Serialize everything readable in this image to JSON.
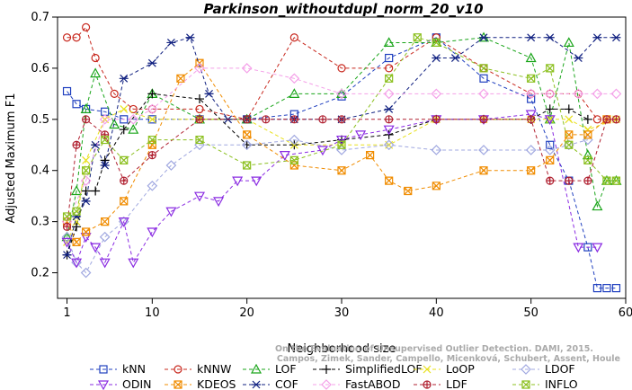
{
  "chart_data": {
    "type": "line",
    "title": "Parkinson_withoutdupl_norm_20_v10",
    "xlabel": "Neighborhood size",
    "ylabel": "Adjusted Maximum F1",
    "xlim": [
      0,
      60
    ],
    "ylim": [
      0.15,
      0.7
    ],
    "xticks": [
      1,
      10,
      20,
      30,
      40,
      50,
      60
    ],
    "yticks": [
      0.2,
      0.3,
      0.4,
      0.5,
      0.6,
      0.7
    ],
    "grid": false,
    "legend_position": "bottom",
    "credit": [
      "Campos, Zimek, Sander, Campello, Micenková, Schubert, Assent, Houle",
      "On the Evaluation of Unsupervised Outlier Detection. DAMI, 2015."
    ],
    "series": [
      {
        "name": "kNN",
        "color": "#1f3fbf",
        "marker": "square",
        "x": [
          1,
          2,
          3,
          5,
          7,
          10,
          15,
          20,
          25,
          30,
          35,
          40,
          45,
          50,
          52,
          54,
          56,
          57,
          58,
          59
        ],
        "y": [
          0.555,
          0.53,
          0.52,
          0.515,
          0.5,
          0.5,
          0.5,
          0.5,
          0.51,
          0.545,
          0.62,
          0.66,
          0.58,
          0.54,
          0.45,
          0.38,
          0.25,
          0.17,
          0.17,
          0.17
        ]
      },
      {
        "name": "kNNW",
        "color": "#c8281e",
        "marker": "circle",
        "x": [
          1,
          2,
          3,
          4,
          6,
          8,
          10,
          15,
          20,
          25,
          30,
          35,
          40,
          45,
          50,
          52,
          55,
          57,
          58,
          59
        ],
        "y": [
          0.66,
          0.66,
          0.68,
          0.62,
          0.55,
          0.52,
          0.52,
          0.52,
          0.5,
          0.66,
          0.6,
          0.6,
          0.66,
          0.6,
          0.55,
          0.55,
          0.55,
          0.5,
          0.5,
          0.5
        ]
      },
      {
        "name": "LOF",
        "color": "#1aa51a",
        "marker": "triangle-up",
        "x": [
          1,
          2,
          3,
          4,
          6,
          8,
          10,
          15,
          20,
          25,
          30,
          35,
          40,
          45,
          50,
          52,
          54,
          56,
          57,
          58,
          59
        ],
        "y": [
          0.27,
          0.36,
          0.52,
          0.59,
          0.49,
          0.48,
          0.55,
          0.5,
          0.5,
          0.55,
          0.55,
          0.65,
          0.65,
          0.66,
          0.62,
          0.5,
          0.65,
          0.43,
          0.33,
          0.38,
          0.38
        ]
      },
      {
        "name": "SimplifiedLOF",
        "color": "#000000",
        "marker": "plus",
        "x": [
          1,
          2,
          3,
          4,
          5,
          7,
          10,
          15,
          20,
          25,
          30,
          35,
          40,
          45,
          50,
          52,
          54,
          56
        ],
        "y": [
          0.235,
          0.29,
          0.36,
          0.36,
          0.42,
          0.48,
          0.55,
          0.54,
          0.45,
          0.45,
          0.46,
          0.47,
          0.5,
          0.5,
          0.5,
          0.52,
          0.52,
          0.5
        ]
      },
      {
        "name": "LoOP",
        "color": "#e8e01a",
        "marker": "x",
        "x": [
          1,
          2,
          3,
          5,
          7,
          10,
          15,
          20,
          25,
          30,
          35,
          40,
          45,
          50,
          52,
          54,
          56,
          59
        ],
        "y": [
          0.26,
          0.3,
          0.42,
          0.5,
          0.52,
          0.5,
          0.5,
          0.5,
          0.45,
          0.45,
          0.45,
          0.5,
          0.5,
          0.5,
          0.5,
          0.5,
          0.48,
          0.5
        ]
      },
      {
        "name": "LDOF",
        "color": "#a0a8e0",
        "marker": "diamond",
        "x": [
          1,
          2,
          3,
          5,
          7,
          10,
          12,
          15,
          20,
          25,
          30,
          35,
          40,
          45,
          50,
          52,
          54,
          56
        ],
        "y": [
          0.27,
          0.22,
          0.2,
          0.27,
          0.3,
          0.37,
          0.41,
          0.45,
          0.45,
          0.46,
          0.44,
          0.45,
          0.44,
          0.44,
          0.44,
          0.44,
          0.45,
          0.46
        ]
      },
      {
        "name": "ODIN",
        "color": "#8a2be2",
        "marker": "triangle-down",
        "x": [
          1,
          2,
          3,
          4,
          5,
          7,
          8,
          10,
          12,
          15,
          17,
          19,
          21,
          24,
          28,
          30,
          32,
          35,
          40,
          45,
          50,
          52,
          55,
          57
        ],
        "y": [
          0.26,
          0.22,
          0.27,
          0.25,
          0.22,
          0.3,
          0.22,
          0.28,
          0.32,
          0.35,
          0.34,
          0.38,
          0.38,
          0.43,
          0.44,
          0.46,
          0.47,
          0.48,
          0.5,
          0.5,
          0.51,
          0.5,
          0.25,
          0.25
        ]
      },
      {
        "name": "KDEOS",
        "color": "#f08c00",
        "marker": "square-x",
        "x": [
          1,
          2,
          3,
          5,
          7,
          10,
          13,
          15,
          20,
          25,
          30,
          33,
          35,
          37,
          40,
          45,
          50,
          52,
          54,
          56,
          58
        ],
        "y": [
          0.3,
          0.26,
          0.28,
          0.3,
          0.34,
          0.45,
          0.58,
          0.61,
          0.47,
          0.41,
          0.4,
          0.43,
          0.38,
          0.36,
          0.37,
          0.4,
          0.4,
          0.42,
          0.47,
          0.47,
          0.5
        ]
      },
      {
        "name": "COF",
        "color": "#102080",
        "marker": "asterisk",
        "x": [
          1,
          2,
          3,
          4,
          5,
          7,
          10,
          12,
          14,
          16,
          18,
          20,
          25,
          30,
          35,
          40,
          42,
          45,
          50,
          52,
          55,
          57,
          59
        ],
        "y": [
          0.235,
          0.31,
          0.34,
          0.45,
          0.41,
          0.58,
          0.61,
          0.65,
          0.66,
          0.55,
          0.5,
          0.5,
          0.5,
          0.5,
          0.52,
          0.62,
          0.62,
          0.66,
          0.66,
          0.66,
          0.62,
          0.66,
          0.66
        ]
      },
      {
        "name": "FastABOD",
        "color": "#f4a0e8",
        "marker": "diamond",
        "x": [
          1,
          3,
          5,
          8,
          10,
          15,
          20,
          25,
          30,
          35,
          40,
          45,
          50,
          52,
          55,
          57,
          59
        ],
        "y": [
          0.3,
          0.38,
          0.5,
          0.5,
          0.52,
          0.6,
          0.6,
          0.58,
          0.55,
          0.55,
          0.55,
          0.55,
          0.55,
          0.55,
          0.55,
          0.55,
          0.55
        ]
      },
      {
        "name": "LDF",
        "color": "#b02030",
        "marker": "circle-plus",
        "x": [
          1,
          2,
          3,
          5,
          7,
          10,
          15,
          20,
          22,
          25,
          28,
          30,
          35,
          40,
          45,
          50,
          52,
          54,
          56,
          58,
          59
        ],
        "y": [
          0.29,
          0.45,
          0.5,
          0.47,
          0.38,
          0.43,
          0.5,
          0.5,
          0.5,
          0.5,
          0.5,
          0.5,
          0.5,
          0.5,
          0.5,
          0.5,
          0.38,
          0.38,
          0.38,
          0.5,
          0.5
        ]
      },
      {
        "name": "INFLO",
        "color": "#8cc020",
        "marker": "square-x",
        "x": [
          1,
          2,
          3,
          5,
          7,
          10,
          15,
          20,
          25,
          30,
          35,
          38,
          40,
          45,
          50,
          52,
          54,
          56,
          58,
          59
        ],
        "y": [
          0.31,
          0.32,
          0.4,
          0.46,
          0.42,
          0.46,
          0.46,
          0.41,
          0.42,
          0.45,
          0.58,
          0.66,
          0.65,
          0.6,
          0.58,
          0.6,
          0.45,
          0.42,
          0.38,
          0.38
        ]
      }
    ]
  }
}
